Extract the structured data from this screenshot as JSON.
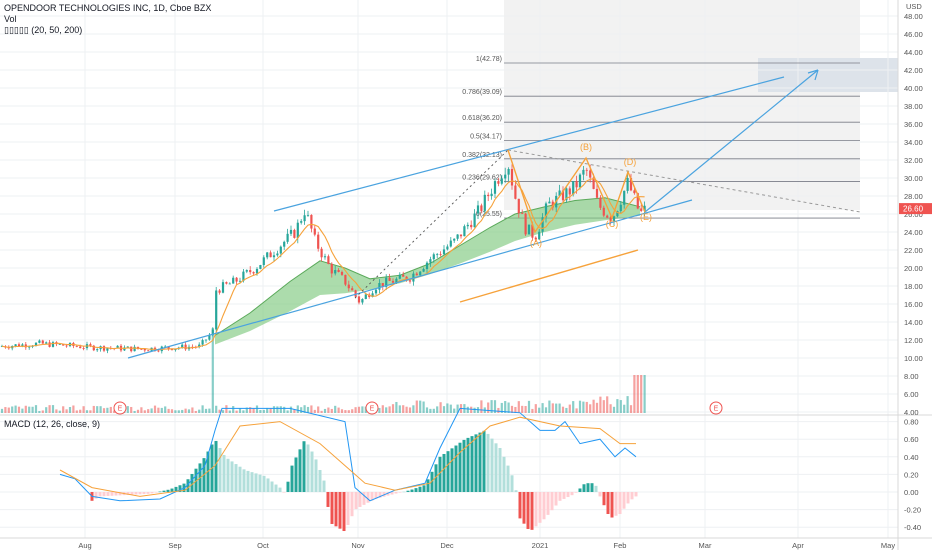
{
  "header": {
    "symbol_line": "OPENDOOR TECHNOLOGIES INC, 1D, Cboe BZX",
    "volume_label": "Vol",
    "ma_ribbon_label": "▯▯▯▯▯ (20, 50, 200)",
    "macd_label": "MACD (12, 26, close, 9)"
  },
  "price_axis": {
    "currency": "USD",
    "ticks": [
      "48.00",
      "46.00",
      "44.00",
      "42.00",
      "40.00",
      "38.00",
      "36.00",
      "34.00",
      "32.00",
      "30.00",
      "28.00",
      "26.00",
      "24.00",
      "22.00",
      "20.00",
      "18.00",
      "16.00",
      "14.00",
      "12.00",
      "10.00",
      "8.00",
      "6.00",
      "4.00"
    ],
    "last_price_label": "26.60",
    "colors": {
      "last_price_bg": "#ef5350"
    }
  },
  "macd_axis": {
    "ticks": [
      "0.80",
      "0.60",
      "0.40",
      "0.20",
      "0.00",
      "-0.20",
      "-0.40"
    ]
  },
  "time_axis": {
    "ticks": [
      "Aug",
      "Sep",
      "Oct",
      "Nov",
      "Dec",
      "2021",
      "Feb",
      "Mar",
      "Apr",
      "May"
    ]
  },
  "earnings_markers": [
    "E",
    "E",
    "E"
  ],
  "fib_levels": [
    {
      "label": "1(42.78)",
      "price": 42.78
    },
    {
      "label": "0.786(39.09)",
      "price": 39.09
    },
    {
      "label": "0.618(36.20)",
      "price": 36.2
    },
    {
      "label": "0.5(34.17)",
      "price": 34.17
    },
    {
      "label": "0.382(32.13)",
      "price": 32.13
    },
    {
      "label": "0.236(29.62)",
      "price": 29.62
    },
    {
      "label": "0(25.55)",
      "price": 25.55
    }
  ],
  "wave_labels": [
    "(A)",
    "(B)",
    "(C)",
    "(D)",
    "(E)"
  ],
  "chart_data": {
    "type": "candlestick",
    "title": "OPENDOOR TECHNOLOGIES INC, 1D, Cboe BZX",
    "ylabel": "USD",
    "ylim": [
      2.5,
      49.5
    ],
    "x_ticks": [
      "Aug",
      "Sep",
      "Oct",
      "Nov",
      "Dec",
      "2021",
      "Feb",
      "Mar",
      "Apr",
      "May"
    ],
    "price_close_approx": [
      {
        "date": "2020-07-15",
        "close": 11.2
      },
      {
        "date": "2020-08-01",
        "close": 11.5
      },
      {
        "date": "2020-09-01",
        "close": 10.9
      },
      {
        "date": "2020-09-15",
        "close": 17.5
      },
      {
        "date": "2020-10-01",
        "close": 19.0
      },
      {
        "date": "2020-10-15",
        "close": 25.0
      },
      {
        "date": "2020-11-01",
        "close": 16.5
      },
      {
        "date": "2020-11-15",
        "close": 18.8
      },
      {
        "date": "2020-12-01",
        "close": 21.5
      },
      {
        "date": "2020-12-21",
        "close": 32.0
      },
      {
        "date": "2021-01-01",
        "close": 23.5
      },
      {
        "date": "2021-01-20",
        "close": 30.5
      },
      {
        "date": "2021-02-01",
        "close": 25.5
      },
      {
        "date": "2021-02-05",
        "close": 29.5
      },
      {
        "date": "2021-02-10",
        "close": 26.6
      }
    ],
    "ma200_approx": [
      {
        "date": "2020-11-25",
        "value": 15.2
      },
      {
        "date": "2021-02-10",
        "value": 21.2
      }
    ],
    "macd_range": [
      -0.5,
      0.9
    ]
  }
}
